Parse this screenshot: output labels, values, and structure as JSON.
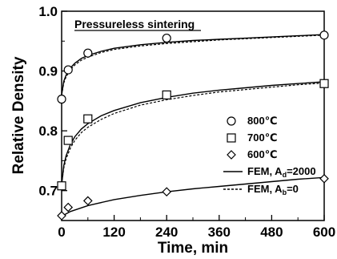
{
  "chart_data": {
    "type": "scatter",
    "title": "",
    "annotation": "Pressureless sintering",
    "xlabel": "Time, min",
    "ylabel": "Relative Density",
    "xlim": [
      0,
      600
    ],
    "ylim": [
      0.65,
      1.0
    ],
    "x_ticks": [
      "0",
      "120",
      "240",
      "360",
      "480",
      "600"
    ],
    "y_ticks": [
      "0.7",
      "0.8",
      "0.9",
      "1.0"
    ],
    "grid": false,
    "legend_position": "right",
    "series": [
      {
        "name": "800℃",
        "marker": "circle",
        "x": [
          0,
          15,
          60,
          240,
          600
        ],
        "y": [
          0.853,
          0.902,
          0.93,
          0.955,
          0.96
        ]
      },
      {
        "name": "700℃",
        "marker": "square",
        "x": [
          0,
          15,
          60,
          240,
          600
        ],
        "y": [
          0.708,
          0.784,
          0.82,
          0.86,
          0.879
        ]
      },
      {
        "name": "600℃",
        "marker": "diamond",
        "x": [
          0,
          15,
          60,
          240,
          600
        ],
        "y": [
          0.658,
          0.672,
          0.683,
          0.698,
          0.72
        ]
      }
    ],
    "model_curves": [
      {
        "name": "FEM, A",
        "subscript": "d",
        "suffix": "=2000",
        "style": "solid",
        "curves": [
          {
            "x": [
              0,
              5,
              10,
              20,
              30,
              45,
              60,
              90,
              120,
              180,
              240,
              300,
              360,
              420,
              480,
              540,
              600
            ],
            "y": [
              0.86,
              0.883,
              0.893,
              0.905,
              0.913,
              0.921,
              0.926,
              0.933,
              0.938,
              0.944,
              0.948,
              0.951,
              0.953,
              0.955,
              0.957,
              0.959,
              0.961
            ]
          },
          {
            "x": [
              0,
              5,
              10,
              20,
              30,
              45,
              60,
              90,
              120,
              180,
              240,
              300,
              360,
              420,
              480,
              540,
              600
            ],
            "y": [
              0.71,
              0.742,
              0.758,
              0.777,
              0.79,
              0.803,
              0.812,
              0.825,
              0.834,
              0.847,
              0.856,
              0.863,
              0.868,
              0.872,
              0.876,
              0.879,
              0.882
            ]
          },
          {
            "x": [
              0,
              20,
              60,
              120,
              180,
              240,
              300,
              360,
              420,
              480,
              540,
              600
            ],
            "y": [
              0.657,
              0.665,
              0.675,
              0.685,
              0.692,
              0.698,
              0.703,
              0.707,
              0.711,
              0.715,
              0.719,
              0.722
            ]
          }
        ]
      },
      {
        "name": "FEM, A",
        "subscript": "b",
        "suffix": "=0",
        "style": "dashed",
        "curves": [
          {
            "x": [
              0,
              5,
              10,
              20,
              30,
              45,
              60,
              90,
              120,
              180,
              240,
              300,
              360,
              420,
              480,
              540,
              600
            ],
            "y": [
              0.86,
              0.88,
              0.89,
              0.902,
              0.91,
              0.918,
              0.923,
              0.931,
              0.936,
              0.942,
              0.946,
              0.949,
              0.952,
              0.954,
              0.956,
              0.958,
              0.96
            ]
          },
          {
            "x": [
              0,
              5,
              10,
              20,
              30,
              45,
              60,
              90,
              120,
              180,
              240,
              300,
              360,
              420,
              480,
              540,
              600
            ],
            "y": [
              0.71,
              0.738,
              0.753,
              0.771,
              0.784,
              0.797,
              0.806,
              0.819,
              0.829,
              0.843,
              0.852,
              0.859,
              0.865,
              0.869,
              0.873,
              0.877,
              0.88
            ]
          }
        ]
      }
    ]
  }
}
